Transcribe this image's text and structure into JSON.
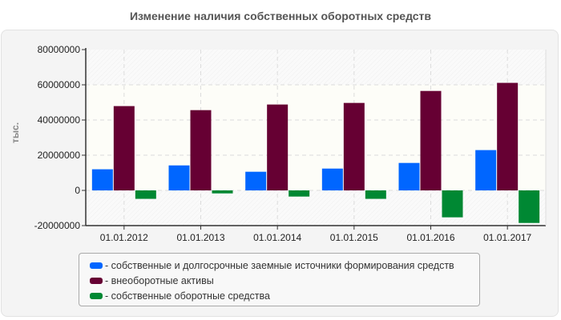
{
  "chart_data": {
    "type": "bar",
    "title": "Изменение наличия собственных оборотных средств",
    "ylabel": "тыс.",
    "xlabel": "",
    "categories": [
      "01.01.2012",
      "01.01.2013",
      "01.01.2014",
      "01.01.2015",
      "01.01.2016",
      "01.01.2017"
    ],
    "ylim": [
      -20000000,
      80000000
    ],
    "yticks": [
      -20000000,
      0,
      20000000,
      40000000,
      60000000,
      80000000
    ],
    "ytick_labels": [
      "-20000000",
      "0",
      "20000000",
      "40000000",
      "60000000",
      "80000000"
    ],
    "grid": true,
    "legend_position": "bottom",
    "series": [
      {
        "name": "собственные и долгосрочные заемные источники формирования средств",
        "color": "#0066ff",
        "values": [
          12000000,
          14200000,
          10600000,
          12400000,
          15600000,
          22900000
        ]
      },
      {
        "name": "внеоборотные активы",
        "color": "#660033",
        "values": [
          47900000,
          45600000,
          48800000,
          49700000,
          56500000,
          61100000
        ]
      },
      {
        "name": "собственные оборотные средства",
        "color": "#008833",
        "values": [
          -4800000,
          -1700000,
          -3500000,
          -4800000,
          -15300000,
          -18500000
        ]
      }
    ]
  }
}
